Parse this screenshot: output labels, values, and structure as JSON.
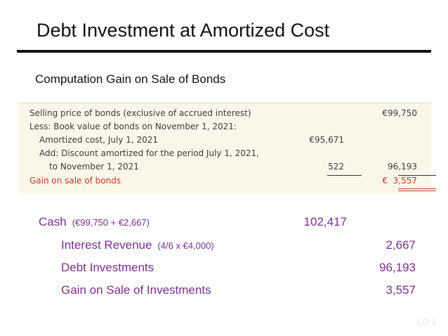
{
  "title": "Debt Investment at Amortized Cost",
  "subtitle": "Computation Gain on Sale of Bonds",
  "computation": {
    "rows": [
      {
        "label": "Selling price of bonds (exclusive of accrued interest)",
        "mid": "",
        "right": "€99,750"
      },
      {
        "label": "Less: Book value of bonds on November 1, 2021:",
        "mid": "",
        "right": ""
      },
      {
        "label": "Amortized cost, July 1, 2021",
        "mid": "€95,671",
        "right": ""
      },
      {
        "label": "Add: Discount amortized for the period July 1, 2021,",
        "mid": "",
        "right": ""
      },
      {
        "label": "to November 1, 2021",
        "mid": "522",
        "right": "96,193"
      },
      {
        "label": "Gain on sale of bonds",
        "mid": "",
        "right": "€  3,557"
      }
    ]
  },
  "journal": {
    "entries": [
      {
        "account": "Cash",
        "note": "(€99,750 + €2,667)",
        "debit": "102,417",
        "credit": ""
      },
      {
        "account": "Interest Revenue",
        "note": "(4/6 x €4,000)",
        "debit": "",
        "credit": "2,667"
      },
      {
        "account": "Debt Investments",
        "note": "",
        "debit": "",
        "credit": "96,193"
      },
      {
        "account": "Gain on Sale of Investments",
        "note": "",
        "debit": "",
        "credit": "3,557"
      }
    ]
  },
  "footer": {
    "lo": "LO 1"
  },
  "colors": {
    "journal_text": "#7b2d8e",
    "gain_text": "#c0392b",
    "box_bg": "#fbf7e8"
  }
}
